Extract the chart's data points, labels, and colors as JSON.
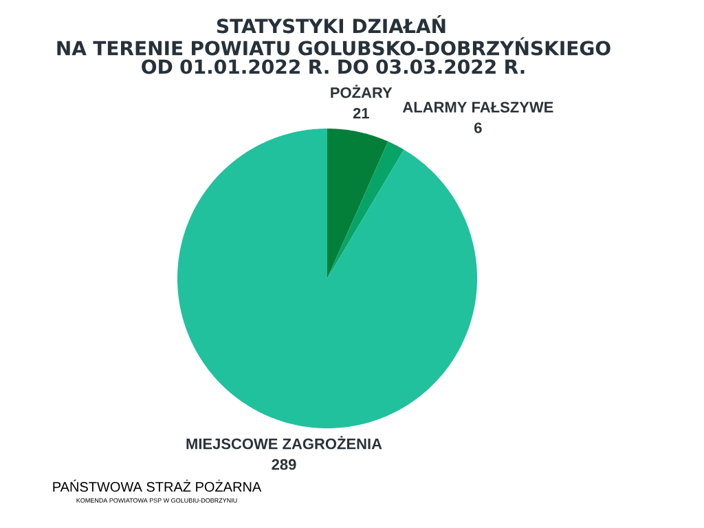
{
  "chart_data": {
    "type": "pie",
    "title": "STATYSTYKI DZIAŁAŃ",
    "subtitle": "NA TERENIE POWIATU GOLUBSKO-DOBRZYŃSKIEGO OD 01.01.2022 R. DO 03.03.2022 R.",
    "categories": [
      "POŻARY",
      "ALARMY FAŁSZYWE",
      "MIEJSCOWE ZAGROŻENIA"
    ],
    "values": [
      21,
      6,
      289
    ],
    "colors": [
      "#037f3a",
      "#08a467",
      "#21c19d"
    ],
    "data_labels": true,
    "annotations": [
      "PAŃSTWOWA STRAŻ POŻARNA",
      "KOMENDA POWIATOWA PSP W GOLUBIU-DOBRZYNIU"
    ]
  }
}
